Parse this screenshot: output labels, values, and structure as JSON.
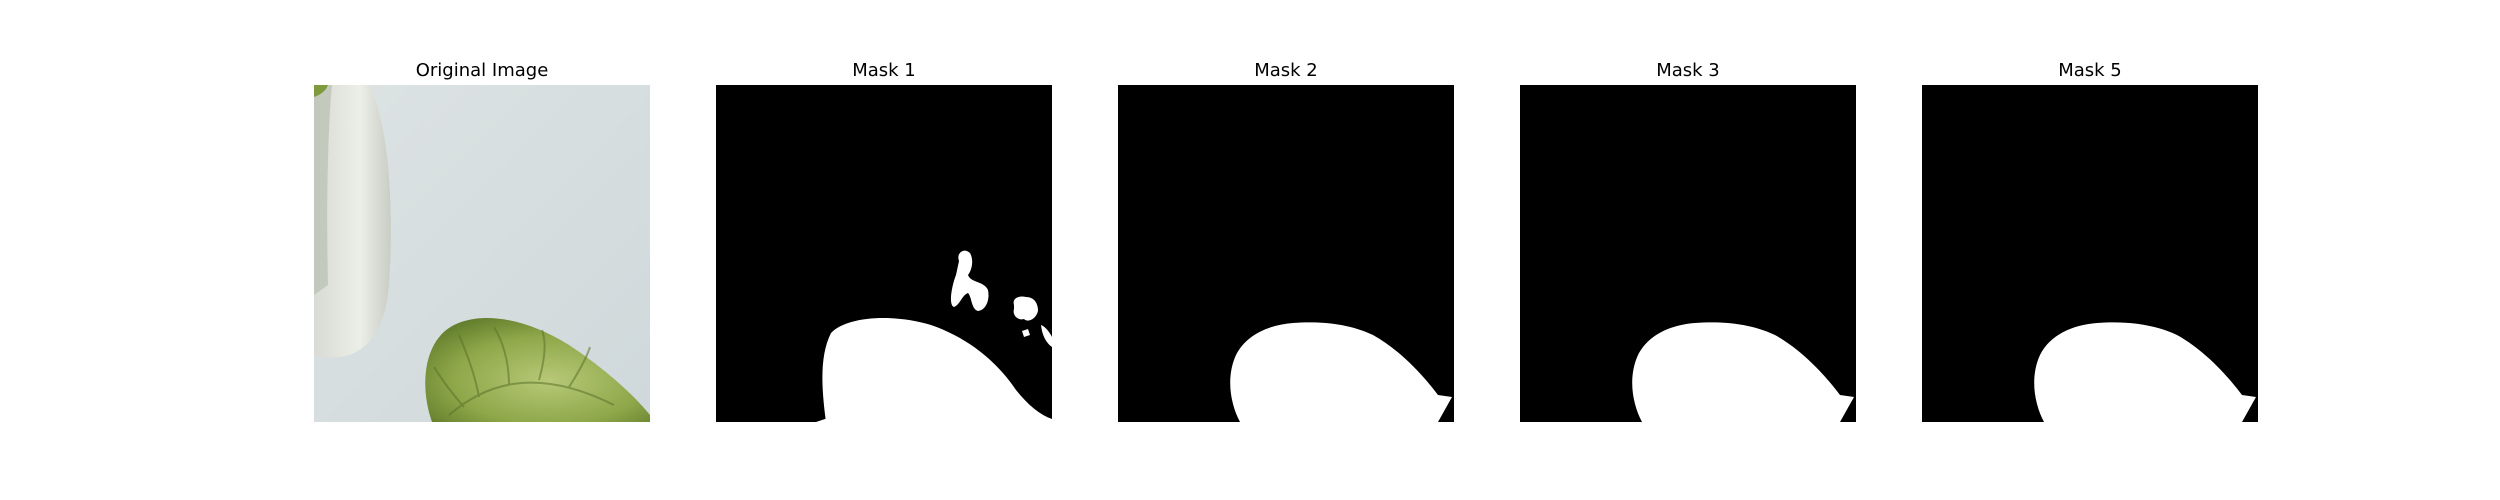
{
  "figure": {
    "panels": [
      {
        "title": "Original Image",
        "kind": "photo"
      },
      {
        "title": "Mask 1",
        "kind": "mask"
      },
      {
        "title": "Mask 2",
        "kind": "mask"
      },
      {
        "title": "Mask 3",
        "kind": "mask"
      },
      {
        "title": "Mask 5",
        "kind": "mask"
      }
    ]
  },
  "colors": {
    "mask_background": "#000000",
    "mask_foreground": "#ffffff",
    "photo_background": "#d9e0e2",
    "leaf_green": "#8fa84a",
    "leaf_dark": "#5f7a2a",
    "pot_white": "#e8ebe4"
  }
}
